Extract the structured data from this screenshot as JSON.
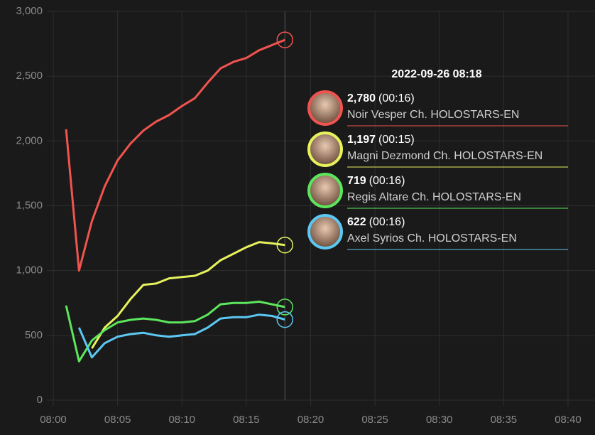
{
  "chart_data": {
    "type": "line",
    "x": [
      "08:01",
      "08:02",
      "08:03",
      "08:04",
      "08:05",
      "08:06",
      "08:07",
      "08:08",
      "08:09",
      "08:10",
      "08:11",
      "08:12",
      "08:13",
      "08:14",
      "08:15",
      "08:16",
      "08:17",
      "08:18"
    ],
    "series": [
      {
        "name": "Noir Vesper Ch. HOLOSTARS-EN",
        "color": "#f0544f",
        "values": [
          2090,
          1000,
          1380,
          1650,
          1850,
          1980,
          2080,
          2150,
          2200,
          2270,
          2330,
          2450,
          2560,
          2610,
          2640,
          2700,
          2740,
          2780
        ]
      },
      {
        "name": "Magni Dezmond Ch. HOLOSTARS-EN",
        "color": "#e6f25c",
        "values": [
          null,
          null,
          400,
          560,
          650,
          780,
          890,
          900,
          940,
          950,
          960,
          1000,
          1080,
          1130,
          1180,
          1220,
          1210,
          1197
        ]
      },
      {
        "name": "Regis Altare Ch. HOLOSTARS-EN",
        "color": "#5ce65c",
        "values": [
          730,
          300,
          460,
          540,
          600,
          620,
          630,
          620,
          600,
          600,
          610,
          660,
          740,
          750,
          750,
          760,
          740,
          719
        ]
      },
      {
        "name": "Axel Syrios Ch. HOLOSTARS-EN",
        "color": "#5cc8f2",
        "values": [
          null,
          560,
          330,
          440,
          490,
          510,
          520,
          500,
          490,
          500,
          510,
          560,
          630,
          640,
          640,
          660,
          650,
          622
        ]
      }
    ],
    "xlim": [
      "08:00",
      "08:40"
    ],
    "xticks": [
      "08:00",
      "08:05",
      "08:10",
      "08:15",
      "08:20",
      "08:25",
      "08:30",
      "08:35",
      "08:40"
    ],
    "ylim": [
      0,
      3000
    ],
    "yticks": [
      0,
      500,
      {
        "value": 1000,
        "label": "1,000"
      },
      {
        "value": 1500,
        "label": "1,500"
      },
      {
        "value": 2000,
        "label": "2,000"
      },
      {
        "value": 2500,
        "label": "2,500"
      },
      {
        "value": 3000,
        "label": "3,000"
      }
    ],
    "grid": true,
    "tooltip": {
      "title": "2022-09-26 08:18",
      "items": [
        {
          "label": "2,780",
          "elapsed": "(00:16)"
        },
        {
          "label": "1,197",
          "elapsed": "(00:15)"
        },
        {
          "label": "719",
          "elapsed": "(00:16)"
        },
        {
          "label": "622",
          "elapsed": "(00:16)"
        }
      ]
    }
  }
}
